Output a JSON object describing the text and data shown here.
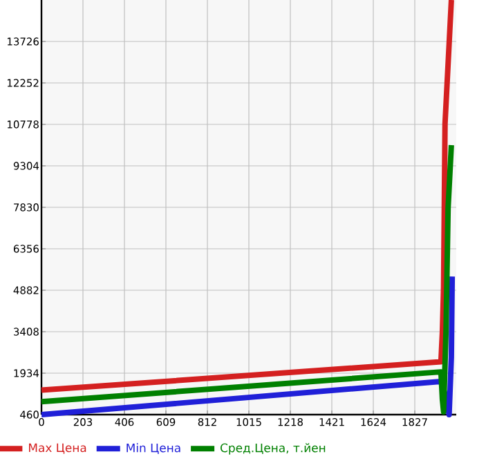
{
  "chart_data": {
    "type": "line",
    "xlim": [
      0,
      2030
    ],
    "xticks": [
      0,
      203,
      406,
      609,
      812,
      1015,
      1218,
      1421,
      1624,
      1827
    ],
    "ylim": [
      460,
      15200
    ],
    "yticks": [
      460,
      1934,
      3408,
      4882,
      6356,
      7830,
      9304,
      10778,
      12252,
      13726
    ],
    "grid": true,
    "legend": "bottom",
    "marker": "none",
    "line_style": "solid",
    "series": [
      {
        "name": "Max Цена",
        "color": "#d42020",
        "x": [
          0,
          1955,
          1962,
          1968,
          1975,
          2006
        ],
        "values": [
          1330,
          2340,
          3400,
          5000,
          10800,
          15200
        ]
      },
      {
        "name": "Min Цена",
        "color": "#2020d8",
        "x": [
          0,
          1955,
          1975,
          1995,
          2006,
          2010
        ],
        "values": [
          460,
          1640,
          1200,
          460,
          2500,
          5370
        ]
      },
      {
        "name": "Сред.Цена, т.йен",
        "color": "#008000",
        "x": [
          0,
          1955,
          1962,
          1968,
          1980,
          1990,
          2006
        ],
        "values": [
          920,
          1980,
          1000,
          560,
          3500,
          7800,
          10040
        ]
      }
    ]
  }
}
